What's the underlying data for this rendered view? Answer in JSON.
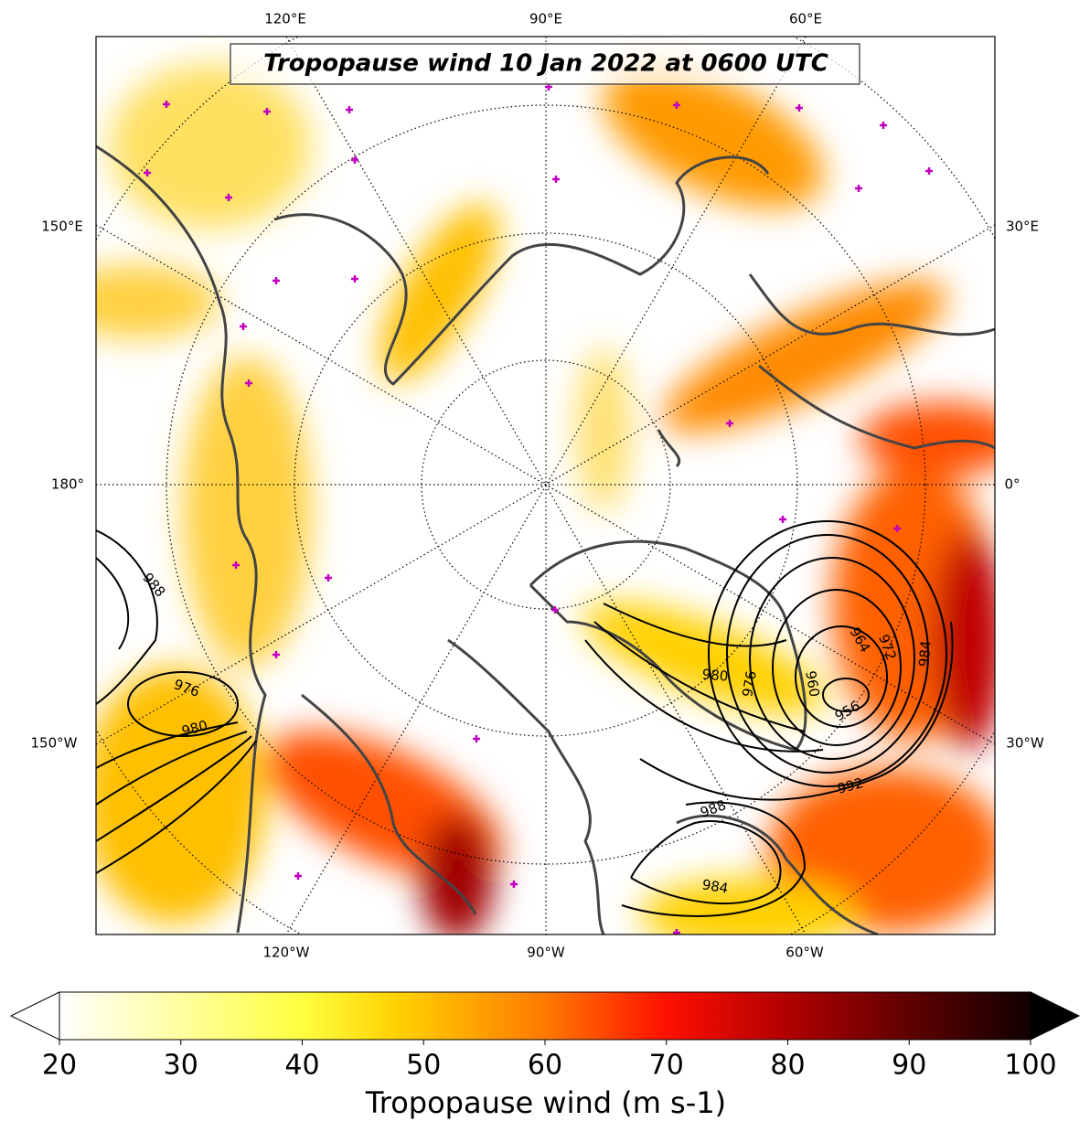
{
  "title": "Tropopause wind 10 Jan 2022 at 0600 UTC",
  "lon_labels": {
    "top": [
      "120°E",
      "90°E",
      "60°E"
    ],
    "left": [
      "150°E",
      "180°",
      "150°W"
    ],
    "right": [
      "30°E",
      "0°",
      "30°W"
    ],
    "bottom": [
      "120°W",
      "90°W",
      "60°W"
    ]
  },
  "contour_labels": [
    988,
    976,
    980,
    980,
    976,
    960,
    964,
    972,
    984,
    956,
    992,
    988,
    984
  ],
  "colorbar": {
    "label": "Tropopause wind (m s-1)",
    "lim": [
      20,
      100
    ],
    "ticks": [
      20,
      30,
      40,
      50,
      60,
      70,
      80,
      90,
      100
    ]
  }
}
